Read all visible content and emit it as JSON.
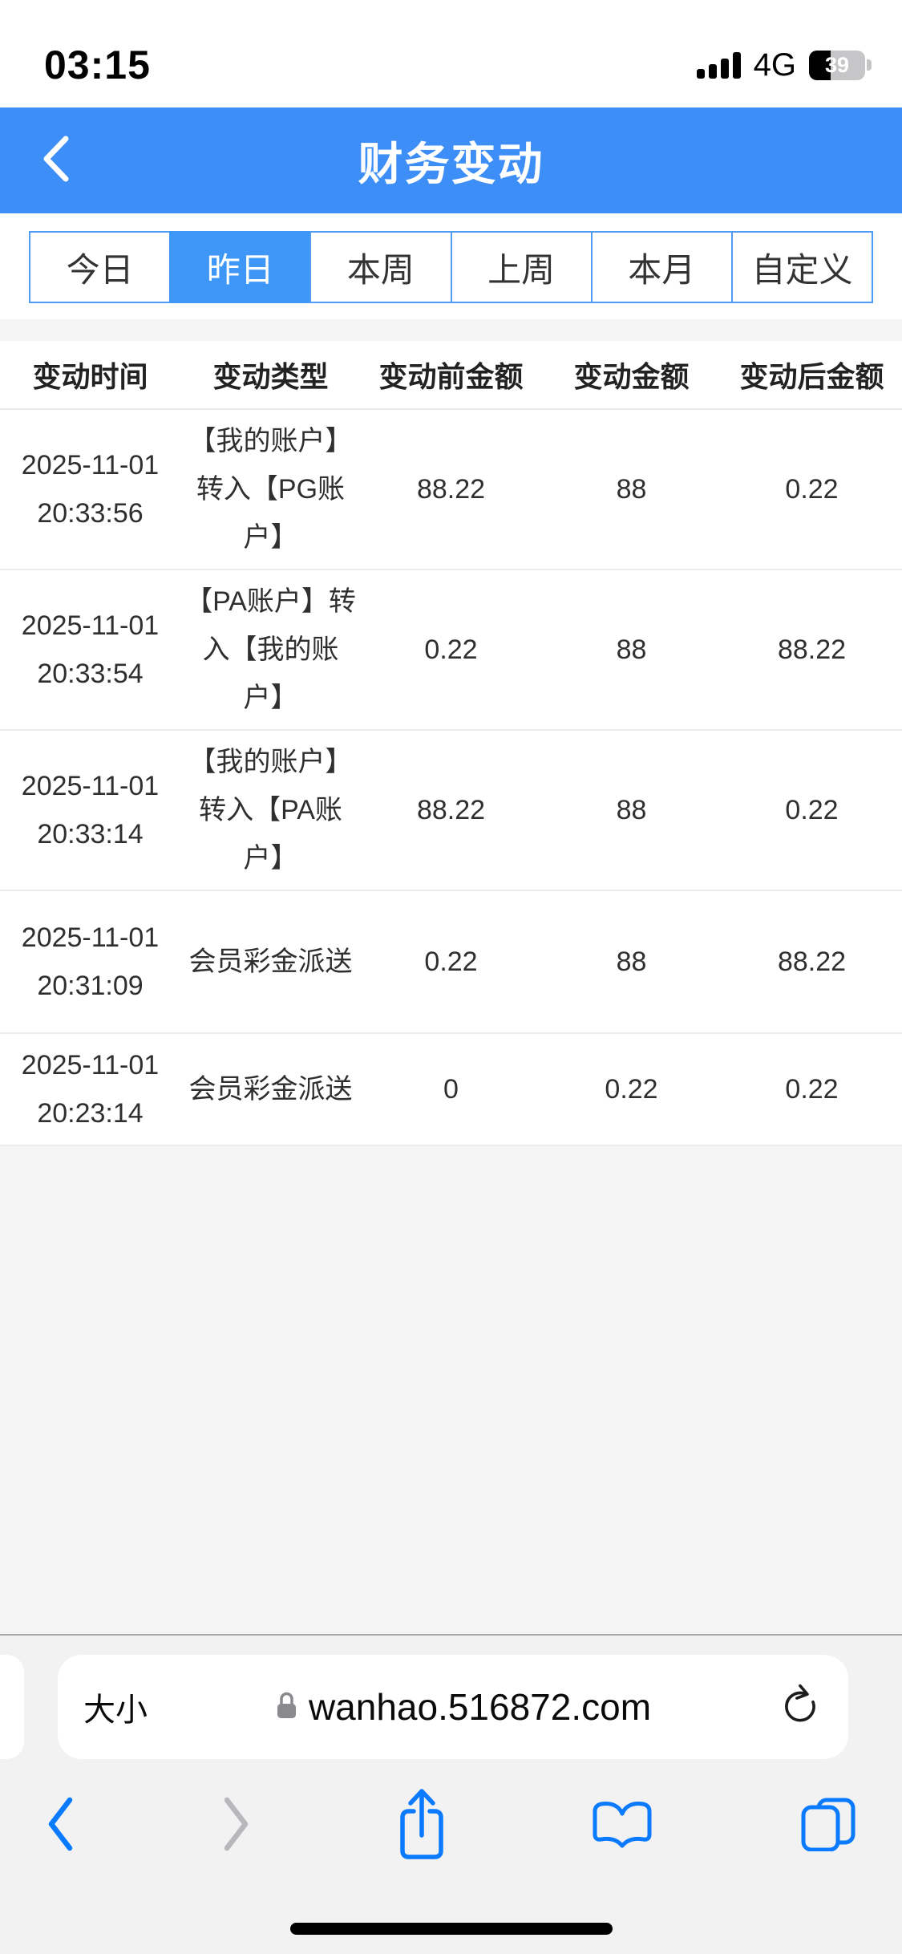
{
  "status_bar": {
    "time": "03:15",
    "network": "4G",
    "battery_percent": "39"
  },
  "nav_header": {
    "title": "财务变动"
  },
  "filter_tabs": {
    "items": [
      {
        "label": "今日",
        "selected": false
      },
      {
        "label": "昨日",
        "selected": true
      },
      {
        "label": "本周",
        "selected": false
      },
      {
        "label": "上周",
        "selected": false
      },
      {
        "label": "本月",
        "selected": false
      },
      {
        "label": "自定义",
        "selected": false
      }
    ]
  },
  "table": {
    "columns": [
      "变动时间",
      "变动类型",
      "变动前金额",
      "变动金额",
      "变动后金额"
    ],
    "rows": [
      {
        "time": "2025-11-01 20:33:56",
        "type": "【我的账户】转入【PG账户】",
        "before_amount": "88.22",
        "change_amount": "88",
        "after_amount": "0.22"
      },
      {
        "time": "2025-11-01 20:33:54",
        "type": "【PA账户】转入【我的账户】",
        "before_amount": "0.22",
        "change_amount": "88",
        "after_amount": "88.22"
      },
      {
        "time": "2025-11-01 20:33:14",
        "type": "【我的账户】转入【PA账户】",
        "before_amount": "88.22",
        "change_amount": "88",
        "after_amount": "0.22"
      },
      {
        "time": "2025-11-01 20:31:09",
        "type": "会员彩金派送",
        "before_amount": "0.22",
        "change_amount": "88",
        "after_amount": "88.22"
      },
      {
        "time": "2025-11-01 20:23:14",
        "type": "会员彩金派送",
        "before_amount": "0",
        "change_amount": "0.22",
        "after_amount": "0.22"
      }
    ]
  },
  "browser": {
    "font_size_button": "大小",
    "url": "wanhao.516872.com"
  },
  "colors": {
    "header_blue": "#3E8EF7",
    "tab_active_blue": "#3E97F7",
    "safari_icon_blue": "#0A7AFF"
  }
}
